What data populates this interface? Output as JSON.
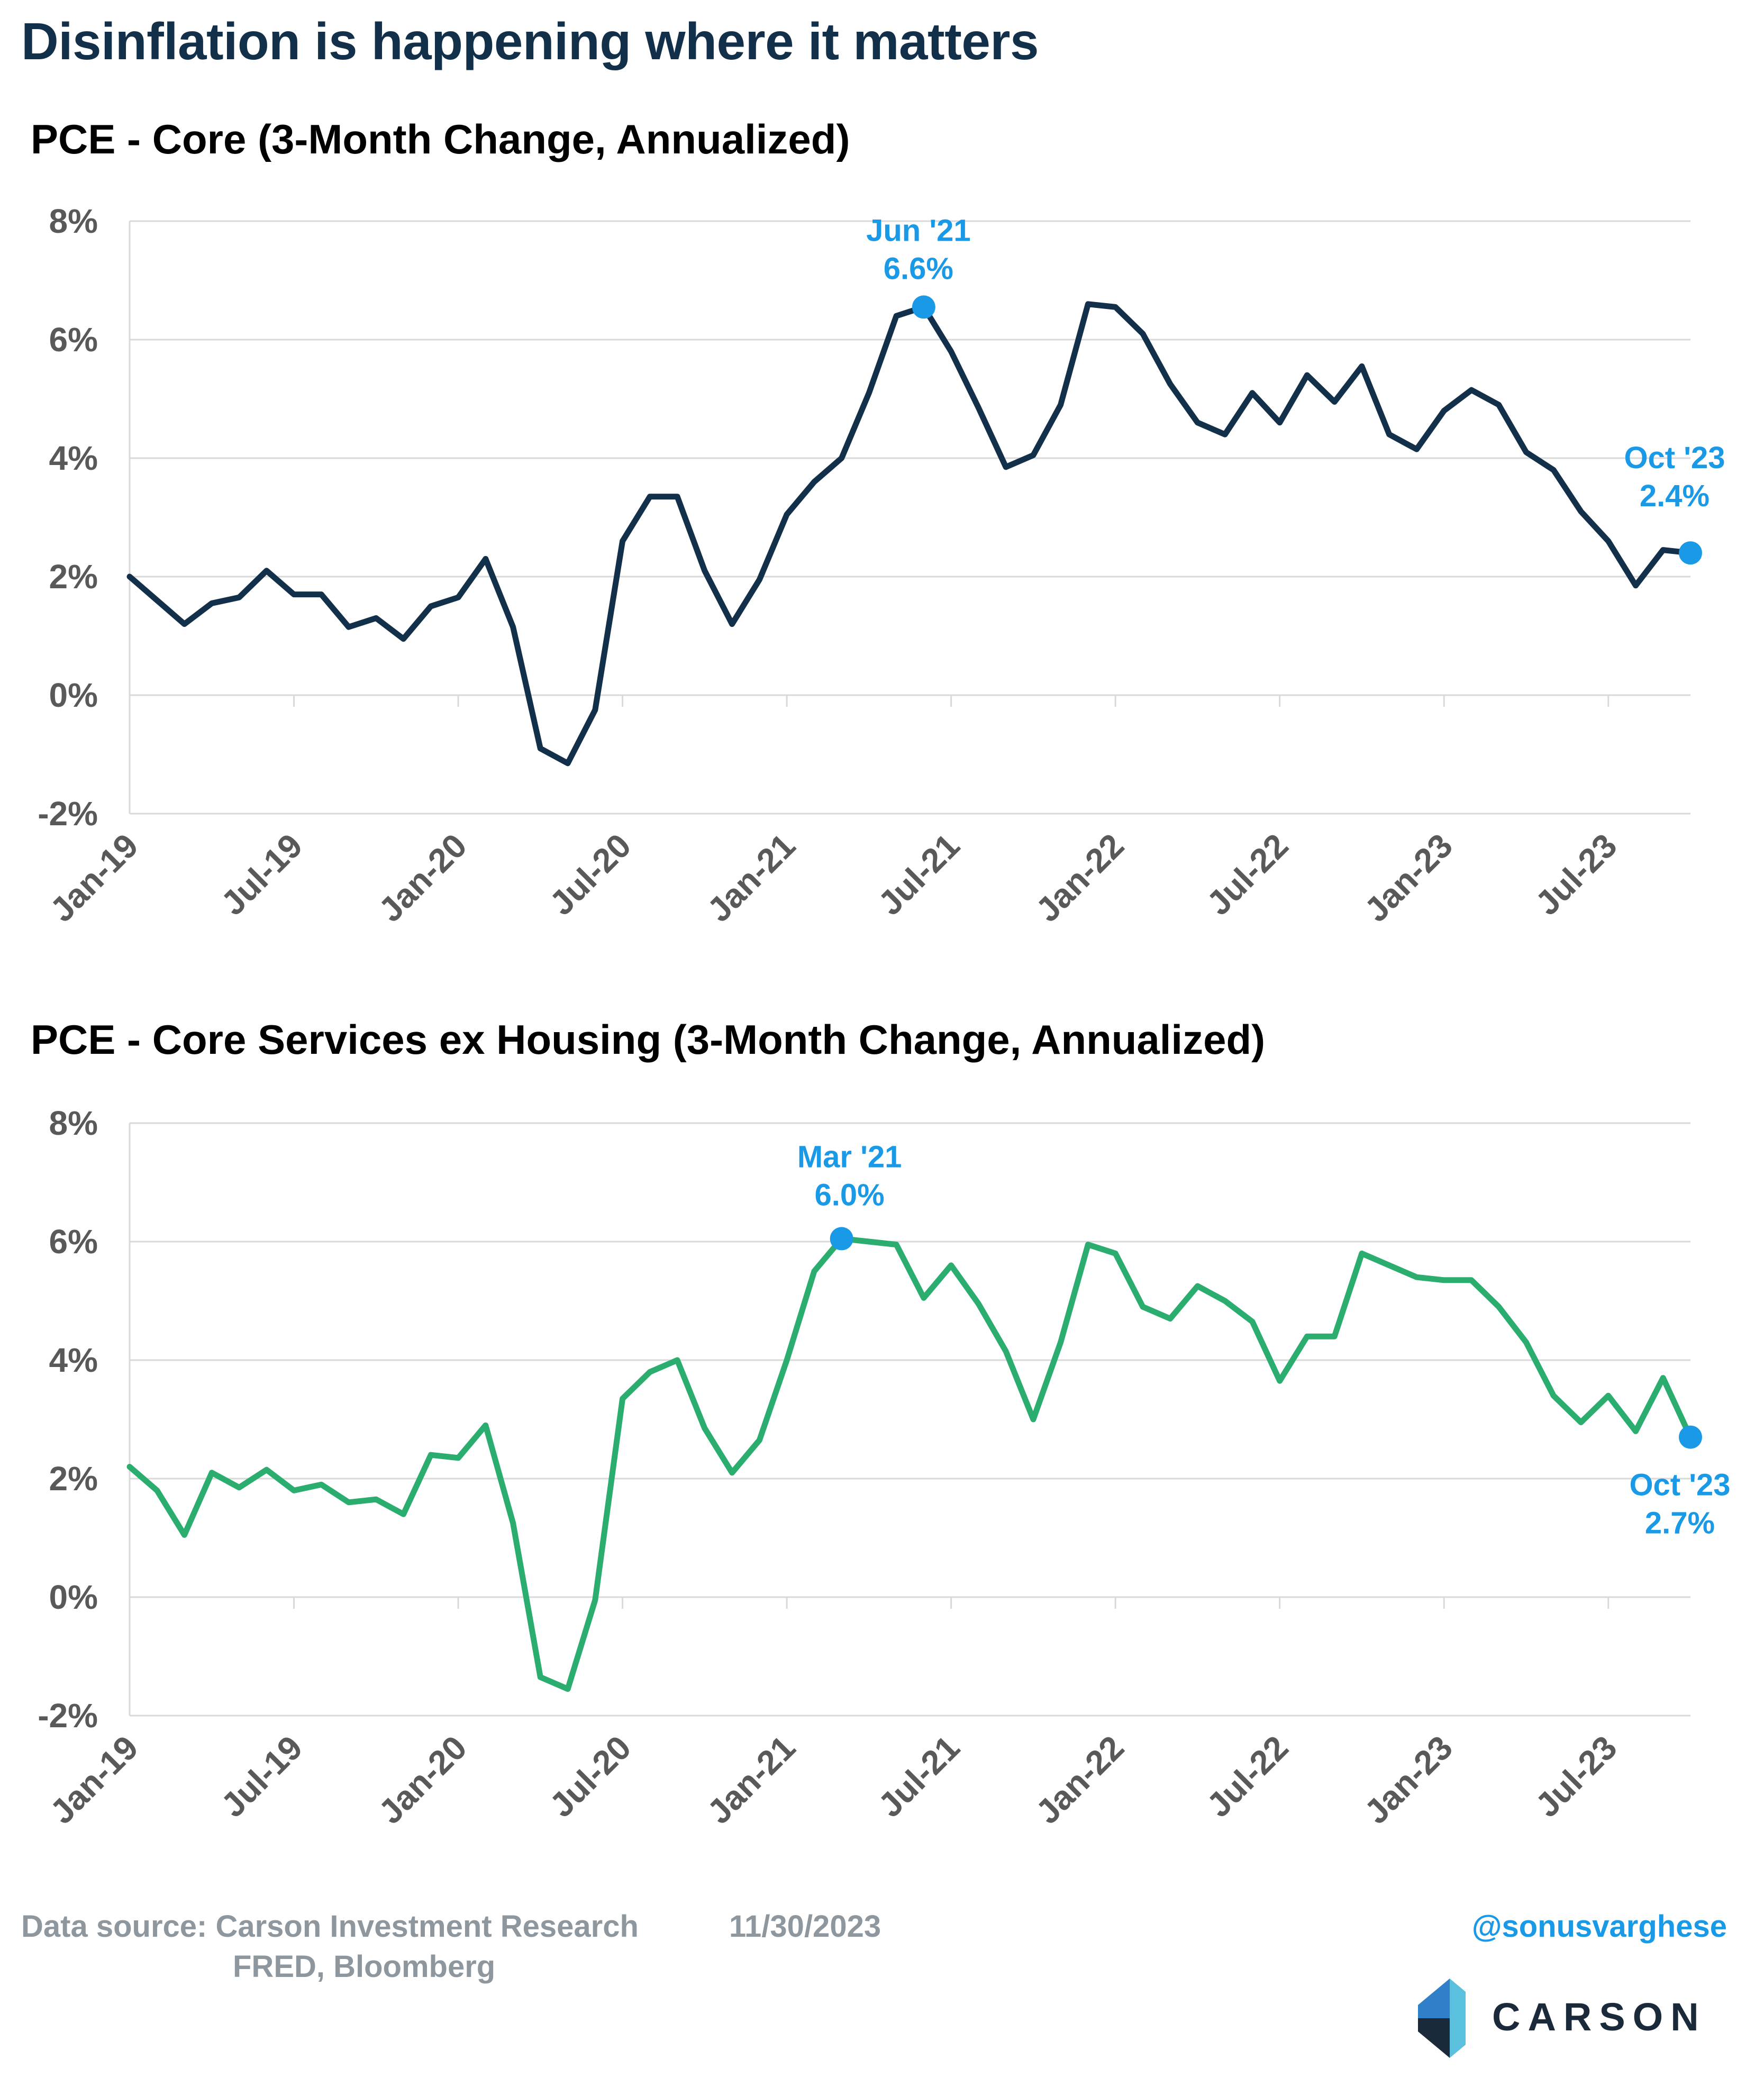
{
  "title": "Disinflation is happening where it matters",
  "colors": {
    "chart1_line": "#13304a",
    "chart2_line": "#2aad6f",
    "highlight": "#1a9ae6",
    "grid": "#d9d9d9",
    "axis_text": "#595959",
    "footer_text": "#8e979e"
  },
  "chart_data": [
    {
      "type": "line",
      "title": "PCE - Core (3-Month Change, Annualized)",
      "xlabel": "",
      "ylabel": "",
      "ylim": [
        -2,
        8
      ],
      "yticks": [
        "8%",
        "6%",
        "4%",
        "2%",
        "0%",
        "-2%"
      ],
      "xticks": [
        "Jan-19",
        "Jul-19",
        "Jan-20",
        "Jul-20",
        "Jan-21",
        "Jul-21",
        "Jan-22",
        "Jul-22",
        "Jan-23",
        "Jul-23"
      ],
      "x_start": "2019-01",
      "x_end": "2023-10",
      "grid": true,
      "series": [
        {
          "values": [
            2.0,
            1.6,
            1.2,
            1.55,
            1.65,
            2.1,
            1.7,
            1.7,
            1.15,
            1.3,
            0.95,
            1.5,
            1.65,
            2.3,
            1.15,
            -0.9,
            -1.15,
            -0.25,
            2.6,
            3.35,
            3.35,
            2.1,
            1.2,
            1.95,
            3.05,
            3.6,
            4.0,
            5.1,
            6.4,
            6.55,
            5.8,
            4.85,
            3.85,
            4.05,
            4.9,
            6.6,
            6.55,
            6.1,
            5.25,
            4.6,
            4.4,
            5.1,
            4.6,
            5.4,
            4.95,
            5.55,
            4.4,
            4.15,
            4.8,
            5.15,
            4.9,
            4.1,
            3.8,
            3.1,
            2.6,
            1.85,
            2.45,
            2.4
          ]
        }
      ],
      "annotations": [
        {
          "x": "2021-06",
          "lines": [
            "Jun '21",
            "6.6%"
          ]
        },
        {
          "x": "2023-10",
          "lines": [
            "Oct '23",
            "2.4%"
          ]
        }
      ]
    },
    {
      "type": "line",
      "title": "PCE - Core Services ex Housing (3-Month Change, Annualized)",
      "xlabel": "",
      "ylabel": "",
      "ylim": [
        -2,
        8
      ],
      "yticks": [
        "8%",
        "6%",
        "4%",
        "2%",
        "0%",
        "-2%"
      ],
      "xticks": [
        "Jan-19",
        "Jul-19",
        "Jan-20",
        "Jul-20",
        "Jan-21",
        "Jul-21",
        "Jan-22",
        "Jul-22",
        "Jan-23",
        "Jul-23"
      ],
      "x_start": "2019-01",
      "x_end": "2023-10",
      "grid": true,
      "series": [
        {
          "values": [
            2.2,
            1.8,
            1.05,
            2.1,
            1.85,
            2.15,
            1.8,
            1.9,
            1.6,
            1.65,
            1.4,
            2.4,
            2.35,
            2.9,
            1.25,
            -1.35,
            -1.55,
            -0.05,
            3.35,
            3.8,
            4.0,
            2.85,
            2.1,
            2.65,
            4.0,
            5.5,
            6.05,
            6.0,
            5.95,
            5.05,
            5.6,
            4.95,
            4.15,
            3.0,
            4.3,
            5.95,
            5.8,
            4.9,
            4.7,
            5.25,
            5.0,
            4.65,
            3.65,
            4.4,
            4.4,
            5.8,
            5.6,
            5.4,
            5.35,
            5.35,
            4.9,
            4.3,
            3.4,
            2.95,
            3.4,
            2.8,
            3.7,
            2.7
          ]
        }
      ],
      "annotations": [
        {
          "x": "2021-03",
          "lines": [
            "Mar '21",
            "6.0%"
          ]
        },
        {
          "x": "2023-10",
          "lines": [
            "Oct '23",
            "2.7%"
          ]
        }
      ]
    }
  ],
  "footer": {
    "source_line1": "Data source: Carson Investment Research",
    "source_line2": "FRED, Bloomberg",
    "date": "11/30/2023",
    "handle": "@sonusvarghese",
    "logo_text": "CARSON"
  }
}
